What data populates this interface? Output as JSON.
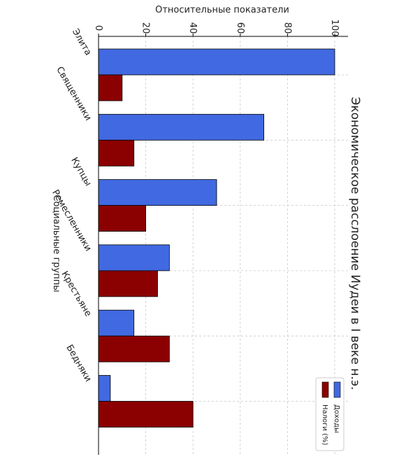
{
  "chart_data": {
    "type": "bar",
    "title": "Экономическое расслоение Иудеи в I веке н.э.",
    "xlabel": "Социальные группы",
    "ylabel": "Относительные показатели",
    "categories": [
      "Элита",
      "Священники",
      "Купцы",
      "Ремесленники",
      "Крестьяне",
      "Бедняки"
    ],
    "series": [
      {
        "name": "Доходы",
        "values": [
          100,
          70,
          50,
          30,
          15,
          5
        ],
        "color": "#4169E1"
      },
      {
        "name": "Налоги (%)",
        "values": [
          10,
          15,
          20,
          25,
          30,
          40
        ],
        "color": "#8B0000"
      }
    ],
    "ylim": [
      0,
      105
    ],
    "yticks": [
      0,
      20,
      40,
      60,
      80,
      100
    ],
    "grid": true,
    "legend_position": "bottom-right",
    "orientation": "rotated-90-clockwise"
  }
}
